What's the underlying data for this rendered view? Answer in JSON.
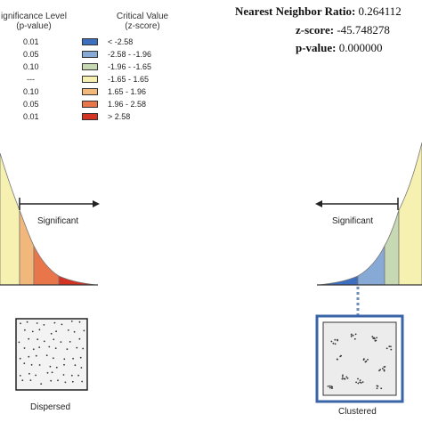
{
  "legend": {
    "significance_header": "ignificance Level",
    "significance_sub": "(p-value)",
    "critical_header": "Critical Value",
    "critical_sub": "(z-score)",
    "rows": [
      {
        "p": "0.01",
        "z": "< -2.58",
        "color": "#3d6fc0"
      },
      {
        "p": "0.05",
        "z": "-2.58 - -1.96",
        "color": "#87a9d6"
      },
      {
        "p": "0.10",
        "z": "-1.96 - -1.65",
        "color": "#c6d9b2"
      },
      {
        "p": "---",
        "z": "-1.65 - 1.65",
        "color": "#f6f1b0"
      },
      {
        "p": "0.10",
        "z": "1.65 - 1.96",
        "color": "#f2b77a"
      },
      {
        "p": "0.05",
        "z": "1.96 - 2.58",
        "color": "#e8764a"
      },
      {
        "p": "0.01",
        "z": "> 2.58",
        "color": "#d43324"
      }
    ]
  },
  "stats": {
    "nn_label": "Nearest Neighbor Ratio:",
    "nn_value": "0.264112",
    "z_label": "z-score:",
    "z_value": "-45.748278",
    "p_label": "p-value:",
    "p_value": "0.000000"
  },
  "left_panel": {
    "significant_label": "Significant",
    "caption": "Dispersed"
  },
  "right_panel": {
    "significant_label": "Significant",
    "caption": "Clustered"
  }
}
